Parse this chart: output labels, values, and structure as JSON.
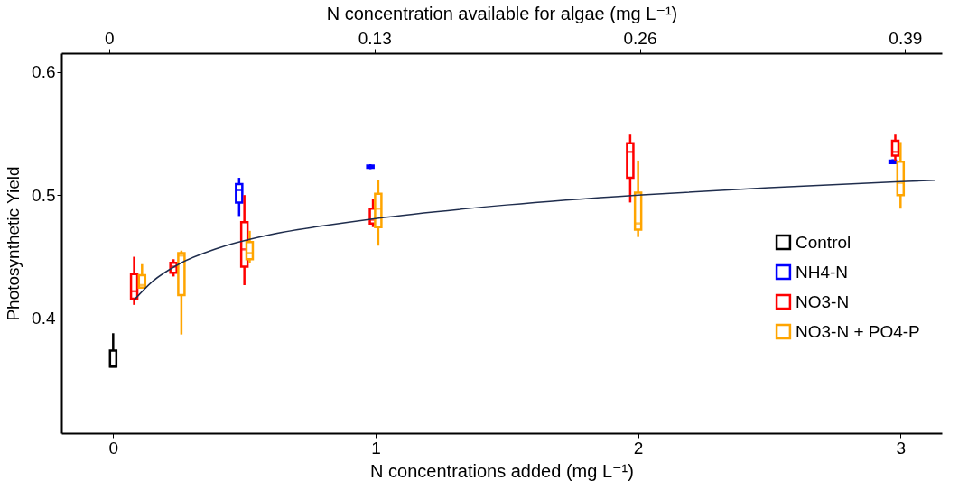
{
  "chart_data": {
    "type": "box",
    "xlabel": "N concentrations added (mg L⁻¹)",
    "ylabel": "Photosynthetic Yield",
    "x2label": "N concentration available for algae (mg L⁻¹)",
    "xlim": [
      -0.18,
      3.14
    ],
    "xticks": [
      0,
      1,
      2,
      3
    ],
    "x2lim": [
      -0.0234,
      0.408
    ],
    "x2ticks": [
      0,
      0.13,
      0.26,
      0.39
    ],
    "ylim": [
      0.307,
      0.615
    ],
    "yticks": [
      0.4,
      0.5,
      0.6
    ],
    "grid": false,
    "legend": "right",
    "series": [
      {
        "name": "Control",
        "color": "#000000",
        "x": [
          0.0
        ],
        "boxes": [
          {
            "low": 0.361,
            "q1": 0.361,
            "median": 0.361,
            "q3": 0.374,
            "high": 0.388
          }
        ]
      },
      {
        "name": "NH4-N",
        "color": "#0000ff",
        "x": [
          0.48,
          0.98,
          2.97
        ],
        "boxes": [
          {
            "low": 0.483,
            "q1": 0.494,
            "median": 0.504,
            "q3": 0.509,
            "high": 0.514
          },
          {
            "low": 0.521,
            "q1": 0.522,
            "median": 0.523,
            "q3": 0.524,
            "high": 0.525
          },
          {
            "low": 0.525,
            "q1": 0.526,
            "median": 0.527,
            "q3": 0.528,
            "high": 0.529
          }
        ]
      },
      {
        "name": "NO3-N",
        "color": "#ff0000",
        "x": [
          0.08,
          0.23,
          0.5,
          0.99,
          1.97,
          2.98
        ],
        "boxes": [
          {
            "low": 0.411,
            "q1": 0.416,
            "median": 0.422,
            "q3": 0.436,
            "high": 0.45
          },
          {
            "low": 0.434,
            "q1": 0.437,
            "median": 0.442,
            "q3": 0.445,
            "high": 0.448
          },
          {
            "low": 0.427,
            "q1": 0.442,
            "median": 0.456,
            "q3": 0.478,
            "high": 0.5
          },
          {
            "low": 0.474,
            "q1": 0.477,
            "median": 0.48,
            "q3": 0.489,
            "high": 0.497
          },
          {
            "low": 0.494,
            "q1": 0.514,
            "median": 0.535,
            "q3": 0.542,
            "high": 0.549
          },
          {
            "low": 0.528,
            "q1": 0.532,
            "median": 0.535,
            "q3": 0.544,
            "high": 0.549
          }
        ]
      },
      {
        "name": "NO3-N + PO4-P",
        "color": "#ffa500",
        "x": [
          0.11,
          0.26,
          0.52,
          1.01,
          2.0,
          3.0
        ],
        "boxes": [
          {
            "low": 0.425,
            "q1": 0.425,
            "median": 0.427,
            "q3": 0.435,
            "high": 0.444
          },
          {
            "low": 0.387,
            "q1": 0.419,
            "median": 0.451,
            "q3": 0.453,
            "high": 0.455
          },
          {
            "low": 0.445,
            "q1": 0.448,
            "median": 0.453,
            "q3": 0.462,
            "high": 0.471
          },
          {
            "low": 0.459,
            "q1": 0.474,
            "median": 0.489,
            "q3": 0.501,
            "high": 0.512
          },
          {
            "low": 0.466,
            "q1": 0.472,
            "median": 0.477,
            "q3": 0.502,
            "high": 0.528
          },
          {
            "low": 0.489,
            "q1": 0.5,
            "median": 0.51,
            "q3": 0.527,
            "high": 0.543
          }
        ]
      },
      {
        "type": "line",
        "color": "#1f2d4d",
        "x": [
          0.08,
          0.15,
          0.25,
          0.4,
          0.6,
          0.8,
          1,
          1.5,
          2,
          2.5,
          3,
          3.13
        ],
        "values": [
          0.415,
          0.43,
          0.444,
          0.457,
          0.468,
          0.475,
          0.481,
          0.492,
          0.5,
          0.506,
          0.511,
          0.512
        ]
      }
    ]
  }
}
